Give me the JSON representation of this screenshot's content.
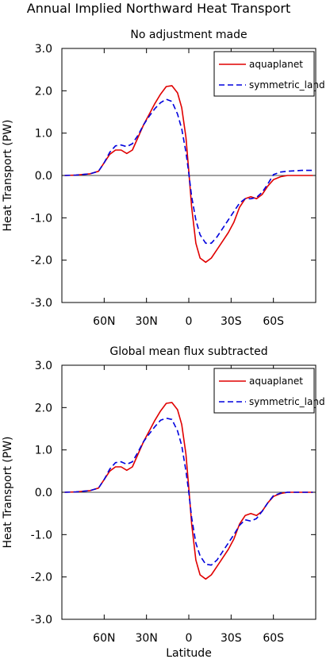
{
  "figure": {
    "title": "Annual Implied Northward Heat Transport"
  },
  "colors": {
    "aquaplanet": "#e00000",
    "symmetric_land": "#0000dd",
    "zero_line": "#000000"
  },
  "chart_data": [
    {
      "type": "line",
      "title": "No adjustment made",
      "xlabel": "",
      "ylabel": "Heat Transport (PW)",
      "xlim": [
        90,
        -90
      ],
      "ylim": [
        -3,
        3
      ],
      "xticks": [
        60,
        30,
        0,
        -30,
        -60
      ],
      "xtick_labels": [
        "60N",
        "30N",
        "0",
        "30S",
        "60S"
      ],
      "yticks": [
        3,
        2,
        1,
        0,
        -1,
        -2,
        -3
      ],
      "ytick_labels": [
        "3.0",
        "2.0",
        "1.0",
        "0.0",
        "-1.0",
        "-2.0",
        "-3.0"
      ],
      "grid": false,
      "legend": "top-right",
      "series": [
        {
          "name": "aquaplanet",
          "style": "solid",
          "x": [
            88,
            80,
            70,
            64,
            60,
            56,
            52,
            48,
            44,
            40,
            36,
            32,
            28,
            24,
            20,
            16,
            12,
            8,
            5,
            2,
            0,
            -2,
            -5,
            -8,
            -12,
            -16,
            -20,
            -24,
            -28,
            -32,
            -36,
            -40,
            -44,
            -48,
            -52,
            -56,
            -60,
            -65,
            -70,
            -80,
            -88
          ],
          "y": [
            0.0,
            0.01,
            0.04,
            0.1,
            0.3,
            0.5,
            0.6,
            0.6,
            0.52,
            0.6,
            0.9,
            1.2,
            1.45,
            1.7,
            1.92,
            2.1,
            2.12,
            1.95,
            1.6,
            0.9,
            0.1,
            -0.75,
            -1.6,
            -1.95,
            -2.05,
            -1.95,
            -1.75,
            -1.55,
            -1.35,
            -1.1,
            -0.75,
            -0.55,
            -0.5,
            -0.55,
            -0.45,
            -0.25,
            -0.1,
            -0.03,
            0.0,
            0.0,
            0.0
          ]
        },
        {
          "name": "symmetric_land",
          "style": "dashed",
          "x": [
            88,
            80,
            70,
            64,
            60,
            56,
            52,
            48,
            44,
            40,
            36,
            32,
            28,
            24,
            20,
            16,
            12,
            8,
            5,
            2,
            0,
            -2,
            -5,
            -8,
            -12,
            -16,
            -20,
            -24,
            -28,
            -32,
            -36,
            -40,
            -44,
            -48,
            -52,
            -56,
            -60,
            -65,
            -70,
            -80,
            -88
          ],
          "y": [
            0.0,
            0.01,
            0.04,
            0.1,
            0.3,
            0.55,
            0.7,
            0.72,
            0.68,
            0.75,
            0.95,
            1.2,
            1.4,
            1.58,
            1.72,
            1.8,
            1.75,
            1.45,
            1.1,
            0.55,
            0.05,
            -0.5,
            -1.05,
            -1.4,
            -1.6,
            -1.6,
            -1.45,
            -1.25,
            -1.05,
            -0.85,
            -0.65,
            -0.55,
            -0.55,
            -0.52,
            -0.4,
            -0.2,
            0.02,
            0.08,
            0.1,
            0.12,
            0.12
          ]
        }
      ]
    },
    {
      "type": "line",
      "title": "Global mean flux subtracted",
      "xlabel": "Latitude",
      "ylabel": "Heat Transport (PW)",
      "xlim": [
        90,
        -90
      ],
      "ylim": [
        -3,
        3
      ],
      "xticks": [
        60,
        30,
        0,
        -30,
        -60
      ],
      "xtick_labels": [
        "60N",
        "30N",
        "0",
        "30S",
        "60S"
      ],
      "yticks": [
        3,
        2,
        1,
        0,
        -1,
        -2,
        -3
      ],
      "ytick_labels": [
        "3.0",
        "2.0",
        "1.0",
        "0.0",
        "-1.0",
        "-2.0",
        "-3.0"
      ],
      "grid": false,
      "legend": "top-right",
      "series": [
        {
          "name": "aquaplanet",
          "style": "solid",
          "x": [
            88,
            80,
            70,
            64,
            60,
            56,
            52,
            48,
            44,
            40,
            36,
            32,
            28,
            24,
            20,
            16,
            12,
            8,
            5,
            2,
            0,
            -2,
            -5,
            -8,
            -12,
            -16,
            -20,
            -24,
            -28,
            -32,
            -36,
            -40,
            -44,
            -48,
            -52,
            -56,
            -60,
            -65,
            -70,
            -80,
            -88
          ],
          "y": [
            0.0,
            0.01,
            0.04,
            0.1,
            0.3,
            0.5,
            0.6,
            0.6,
            0.52,
            0.6,
            0.9,
            1.2,
            1.45,
            1.7,
            1.92,
            2.1,
            2.12,
            1.95,
            1.6,
            0.9,
            0.1,
            -0.75,
            -1.6,
            -1.95,
            -2.05,
            -1.95,
            -1.75,
            -1.55,
            -1.35,
            -1.1,
            -0.75,
            -0.55,
            -0.5,
            -0.55,
            -0.45,
            -0.25,
            -0.1,
            -0.03,
            0.0,
            0.0,
            0.0
          ]
        },
        {
          "name": "symmetric_land",
          "style": "dashed",
          "x": [
            88,
            80,
            70,
            64,
            60,
            56,
            52,
            48,
            44,
            40,
            36,
            32,
            28,
            24,
            20,
            16,
            12,
            8,
            5,
            2,
            0,
            -2,
            -5,
            -8,
            -12,
            -16,
            -20,
            -24,
            -28,
            -32,
            -36,
            -40,
            -44,
            -48,
            -52,
            -56,
            -60,
            -65,
            -70,
            -80,
            -88
          ],
          "y": [
            0.0,
            0.01,
            0.04,
            0.1,
            0.3,
            0.55,
            0.7,
            0.72,
            0.66,
            0.72,
            0.95,
            1.2,
            1.38,
            1.55,
            1.7,
            1.75,
            1.72,
            1.45,
            1.1,
            0.5,
            0.0,
            -0.6,
            -1.2,
            -1.5,
            -1.7,
            -1.72,
            -1.6,
            -1.4,
            -1.2,
            -1.0,
            -0.78,
            -0.65,
            -0.68,
            -0.62,
            -0.45,
            -0.25,
            -0.08,
            -0.02,
            0.0,
            0.0,
            0.0
          ]
        }
      ]
    }
  ]
}
